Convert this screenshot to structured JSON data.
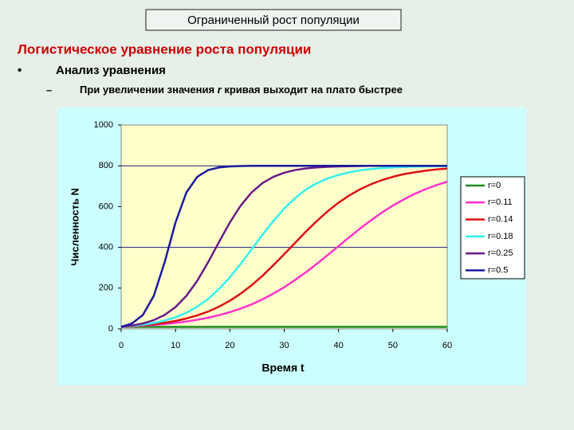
{
  "slide": {
    "title": "Ограниченный рост популяции",
    "heading": "Логистическое уравнение роста популяции",
    "bullet_marker": "•",
    "bullet": "Анализ уравнения",
    "dash": "–",
    "sub_bullet_parts": [
      "При увеличении значения ",
      "r",
      " кривая выходит на плато быстрее"
    ]
  },
  "chart_data": {
    "type": "line",
    "xlabel": "Время t",
    "ylabel": "Численность N",
    "x": [
      0,
      2,
      4,
      6,
      8,
      10,
      12,
      14,
      16,
      18,
      20,
      22,
      24,
      26,
      28,
      30,
      32,
      34,
      36,
      38,
      40,
      42,
      44,
      46,
      48,
      50,
      52,
      54,
      56,
      58,
      60
    ],
    "xlim": [
      0,
      60
    ],
    "xticks": [
      0,
      10,
      20,
      30,
      40,
      50,
      60
    ],
    "ylim": [
      0,
      1000
    ],
    "yticks": [
      0,
      200,
      400,
      600,
      800,
      1000
    ],
    "hlines": [
      400,
      800
    ],
    "legend": "right",
    "series": [
      {
        "name": "r=0",
        "color": "#1f8a1f",
        "values": [
          10,
          10,
          10,
          10,
          10,
          10,
          10,
          10,
          10,
          10,
          10,
          10,
          10,
          10,
          10,
          10,
          10,
          10,
          10,
          10,
          10,
          10,
          10,
          10,
          10,
          10,
          10,
          10,
          10,
          10,
          10
        ]
      },
      {
        "name": "r=0.11",
        "color": "#ff33cc",
        "values": [
          10,
          12.4,
          15.4,
          19.1,
          23.7,
          29.3,
          36.2,
          44.6,
          54.8,
          67.2,
          82,
          99.7,
          120,
          145,
          173,
          204,
          240,
          278,
          319,
          362,
          406,
          450,
          493,
          533,
          571,
          605,
          635,
          662,
          685,
          705,
          722
        ]
      },
      {
        "name": "r=0.14",
        "color": "#dd1111",
        "values": [
          10,
          13.2,
          17.4,
          22.8,
          29.9,
          39.1,
          50.9,
          66,
          85,
          109,
          138,
          173,
          214,
          260,
          312,
          366,
          422,
          477,
          529,
          577,
          619,
          655,
          685,
          710,
          730,
          746,
          759,
          768,
          776,
          782,
          786
        ]
      },
      {
        "name": "r=0.18",
        "color": "#33f0f0",
        "values": [
          10,
          14.3,
          20.3,
          28.7,
          40.6,
          56.9,
          79.1,
          109,
          147,
          195,
          253,
          319,
          390,
          462,
          529,
          590,
          641,
          684,
          714,
          738,
          755,
          768,
          778,
          784,
          789,
          792,
          794,
          796,
          797,
          798,
          798
        ]
      },
      {
        "name": "r=0.25",
        "color": "#6a1a8a",
        "values": [
          10,
          16.4,
          26.6,
          42.9,
          68.4,
          107,
          162,
          236,
          327,
          426,
          522,
          605,
          669,
          715,
          746,
          766,
          779,
          787,
          792,
          795,
          797,
          798,
          799,
          800,
          800,
          800,
          800,
          800,
          800,
          800,
          800
        ]
      },
      {
        "name": "r=0.5",
        "color": "#1a1aa0",
        "values": [
          10,
          26.6,
          68.4,
          162,
          327,
          522,
          669,
          746,
          779,
          792,
          797,
          799,
          800,
          800,
          800,
          800,
          800,
          800,
          800,
          800,
          800,
          800,
          800,
          800,
          800,
          800,
          800,
          800,
          800,
          800,
          800
        ]
      }
    ]
  }
}
